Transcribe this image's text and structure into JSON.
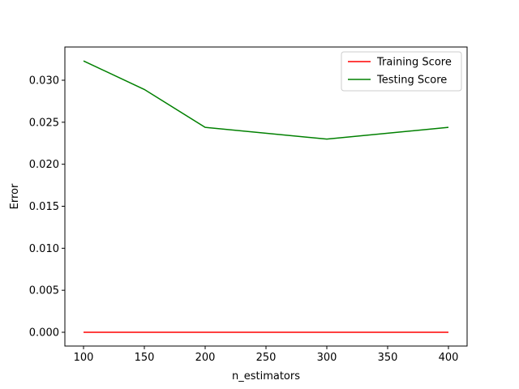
{
  "chart_data": {
    "type": "line",
    "title": "",
    "xlabel": "n_estimators",
    "ylabel": "Error",
    "xlim": [
      100,
      400
    ],
    "ylim": [
      -0.0015,
      0.0338
    ],
    "xticks": [
      100,
      150,
      200,
      250,
      300,
      350,
      400
    ],
    "yticks": [
      0.0,
      0.005,
      0.01,
      0.015,
      0.02,
      0.025,
      0.03
    ],
    "ytick_labels": [
      "0.000",
      "0.005",
      "0.010",
      "0.015",
      "0.020",
      "0.025",
      "0.030"
    ],
    "grid": false,
    "legend_position": "top-right",
    "x": [
      100,
      150,
      200,
      300,
      400
    ],
    "series": [
      {
        "name": "Training Score",
        "color": "#ff0000",
        "values": [
          0.0,
          0.0,
          0.0,
          0.0,
          0.0
        ]
      },
      {
        "name": "Testing Score",
        "color": "#008000",
        "values": [
          0.0323,
          0.0289,
          0.0244,
          0.023,
          0.0244
        ]
      }
    ]
  }
}
